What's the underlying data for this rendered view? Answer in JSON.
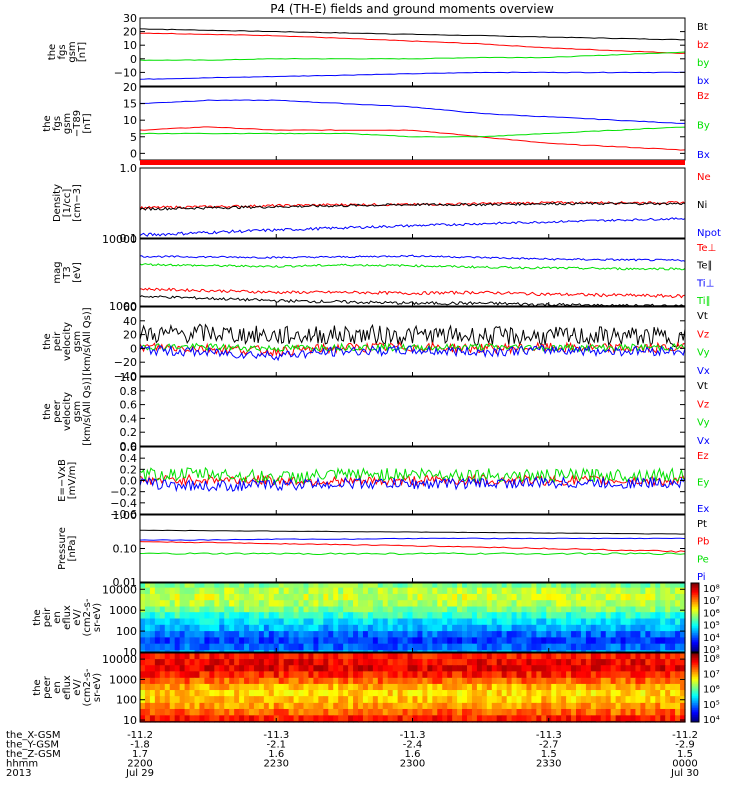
{
  "title": "P4 (TH-E) fields and ground moments overview",
  "colors": {
    "black": "#000000",
    "red": "#ff0000",
    "green": "#00e000",
    "blue": "#0000ff",
    "frame": "#000000"
  },
  "x_axis": {
    "times": [
      "2200",
      "2230",
      "2300",
      "2330",
      "0000"
    ],
    "dates": [
      "Jul 29",
      "",
      "",
      "",
      "Jul 30"
    ],
    "row_labels": [
      "the_X-GSM",
      "the_Y-GSM",
      "the_Z-GSM",
      "hhmm",
      "2013"
    ],
    "ephemeris": {
      "X": [
        "-11.2",
        "-11.3",
        "-11.3",
        "-11.3",
        "-11.2"
      ],
      "Y": [
        "-1.8",
        "-2.1",
        "-2.4",
        "-2.7",
        "-2.9"
      ],
      "Z": [
        "1.7",
        "1.6",
        "1.6",
        "1.5",
        "1.5"
      ]
    }
  },
  "chart_data": [
    {
      "type": "line",
      "panel": "fgs_gsm",
      "ylabel": [
        "the",
        "fgs",
        "gsm",
        "[nT]"
      ],
      "ylim": [
        -20,
        30
      ],
      "yticks": [
        "30",
        "20",
        "10",
        "0",
        "−10"
      ],
      "ytick_values": [
        30,
        20,
        10,
        0,
        -10
      ],
      "x": [
        0,
        15,
        30,
        45,
        60,
        75,
        90,
        105,
        120
      ],
      "series": [
        {
          "name": "Bt",
          "color": "#000000",
          "values": [
            22,
            21,
            20,
            19,
            18,
            17,
            16,
            15,
            14
          ]
        },
        {
          "name": "bz",
          "color": "#ff0000",
          "values": [
            19,
            18,
            17,
            15,
            13,
            11,
            8,
            6,
            4
          ]
        },
        {
          "name": "by",
          "color": "#00e000",
          "values": [
            -1,
            -1,
            0,
            0,
            0,
            1,
            1,
            3,
            5
          ]
        },
        {
          "name": "bx",
          "color": "#0000ff",
          "values": [
            -15,
            -14,
            -13,
            -12,
            -11,
            -10,
            -10,
            -10,
            -10
          ]
        }
      ]
    },
    {
      "type": "line",
      "panel": "fgs_gsm_t89",
      "ylabel": [
        "the",
        "fgs",
        "gsm",
        "−T89",
        "[nT]"
      ],
      "ylim": [
        -2,
        20
      ],
      "yticks": [
        "20",
        "15",
        "10",
        "5",
        "0"
      ],
      "ytick_values": [
        20,
        15,
        10,
        5,
        0
      ],
      "x": [
        0,
        15,
        30,
        45,
        60,
        75,
        90,
        105,
        120
      ],
      "series": [
        {
          "name": "Bz",
          "color": "#ff0000",
          "values": [
            7,
            8,
            7,
            7,
            7,
            5,
            3,
            2,
            1
          ]
        },
        {
          "name": "By",
          "color": "#00e000",
          "values": [
            6,
            6,
            6,
            6,
            5,
            5,
            6,
            7,
            8
          ]
        },
        {
          "name": "Bx",
          "color": "#0000ff",
          "values": [
            15,
            16,
            16,
            15,
            14,
            12,
            11,
            10,
            9
          ]
        }
      ]
    },
    {
      "type": "line",
      "panel": "density",
      "ylabel": [
        "Density",
        "[1/cc]",
        "[cm−3]"
      ],
      "yscale": "log",
      "ylim": [
        0.1,
        1.0
      ],
      "yticks": [
        "1.0",
        "0.1"
      ],
      "ytick_values": [
        1.0,
        0.1
      ],
      "x": [
        0,
        15,
        30,
        45,
        60,
        75,
        90,
        105,
        120
      ],
      "series": [
        {
          "name": "Ne",
          "color": "#ff0000",
          "values": [
            0.27,
            0.28,
            0.29,
            0.3,
            0.3,
            0.31,
            0.32,
            0.32,
            0.32
          ]
        },
        {
          "name": "Ni",
          "color": "#000000",
          "values": [
            0.26,
            0.27,
            0.28,
            0.29,
            0.3,
            0.3,
            0.31,
            0.31,
            0.31
          ]
        },
        {
          "name": "Npot",
          "color": "#0000ff",
          "values": [
            0.11,
            0.12,
            0.13,
            0.14,
            0.15,
            0.16,
            0.17,
            0.18,
            0.19
          ]
        }
      ]
    },
    {
      "type": "line",
      "panel": "temperature",
      "ylabel": [
        "mag",
        "T3",
        "[eV]"
      ],
      "yscale": "log",
      "ylim": [
        1000,
        10000
      ],
      "yticks": [
        "10000",
        "1000"
      ],
      "ytick_values": [
        10000,
        1000
      ],
      "x": [
        0,
        15,
        30,
        45,
        60,
        75,
        90,
        105,
        120
      ],
      "series": [
        {
          "name": "Te⊥",
          "color": "#ff0000",
          "values": [
            1800,
            1700,
            1600,
            1600,
            1550,
            1600,
            1500,
            1450,
            1400
          ]
        },
        {
          "name": "Te∥",
          "color": "#000000",
          "values": [
            1400,
            1300,
            1200,
            1150,
            1100,
            1100,
            1050,
            1000,
            1000
          ]
        },
        {
          "name": "Ti⊥",
          "color": "#0000ff",
          "values": [
            5500,
            5400,
            5300,
            5400,
            5600,
            5300,
            5000,
            4900,
            4800
          ]
        },
        {
          "name": "Ti∥",
          "color": "#00e000",
          "values": [
            4200,
            4000,
            3900,
            4100,
            4000,
            3800,
            3700,
            3600,
            3600
          ]
        }
      ]
    },
    {
      "type": "line",
      "panel": "peir_velocity",
      "ylabel": [
        "the",
        "peir",
        "velocity",
        "gsm",
        "[km/s(All Qs)]"
      ],
      "ylim": [
        -40,
        60
      ],
      "yticks": [
        "60",
        "40",
        "20",
        "0",
        "−20",
        "−40"
      ],
      "ytick_values": [
        60,
        40,
        20,
        0,
        -20,
        -40
      ],
      "x": [
        0,
        15,
        30,
        45,
        60,
        75,
        90,
        105,
        120
      ],
      "series": [
        {
          "name": "Vt",
          "color": "#000000",
          "values": [
            20,
            22,
            18,
            20,
            19,
            18,
            17,
            18,
            16
          ]
        },
        {
          "name": "Vz",
          "color": "#ff0000",
          "values": [
            2,
            0,
            -4,
            1,
            2,
            0,
            1,
            0,
            1
          ]
        },
        {
          "name": "Vy",
          "color": "#00e000",
          "values": [
            3,
            2,
            0,
            2,
            1,
            2,
            1,
            1,
            2
          ]
        },
        {
          "name": "Vx",
          "color": "#0000ff",
          "values": [
            -2,
            -6,
            -10,
            -4,
            -3,
            -5,
            -2,
            -4,
            -3
          ]
        }
      ]
    },
    {
      "type": "line",
      "panel": "peer_velocity",
      "ylabel": [
        "the",
        "peer",
        "velocity",
        "gsm",
        "[km/s(All Qs)]"
      ],
      "ylim": [
        0,
        1
      ],
      "yticks": [
        "1.0",
        "0.8",
        "0.6",
        "0.4",
        "0.2",
        "0.0"
      ],
      "ytick_values": [
        1.0,
        0.8,
        0.6,
        0.4,
        0.2,
        0.0
      ],
      "x": [],
      "series": [
        {
          "name": "Vt",
          "color": "#000000",
          "values": []
        },
        {
          "name": "Vz",
          "color": "#ff0000",
          "values": []
        },
        {
          "name": "Vy",
          "color": "#00e000",
          "values": []
        },
        {
          "name": "Vx",
          "color": "#0000ff",
          "values": []
        }
      ]
    },
    {
      "type": "line",
      "panel": "efield",
      "ylabel": [
        "E=−VxB",
        "[mV/m]"
      ],
      "ylim": [
        -0.6,
        0.6
      ],
      "yticks": [
        "0.6",
        "0.4",
        "0.2",
        "0.0",
        "−0.2",
        "−0.4",
        "−0.6"
      ],
      "ytick_values": [
        0.6,
        0.4,
        0.2,
        0.0,
        -0.2,
        -0.4,
        -0.6
      ],
      "x": [
        0,
        15,
        30,
        45,
        60,
        75,
        90,
        105,
        120
      ],
      "series": [
        {
          "name": "Ez",
          "color": "#ff0000",
          "values": [
            0.0,
            0.02,
            0.0,
            -0.02,
            0.0,
            0.01,
            0.0,
            0.0,
            -0.01
          ]
        },
        {
          "name": "Ey",
          "color": "#00e000",
          "values": [
            0.1,
            0.12,
            0.05,
            0.1,
            0.12,
            0.1,
            0.08,
            0.1,
            0.1
          ]
        },
        {
          "name": "Ex",
          "color": "#0000ff",
          "values": [
            -0.05,
            -0.1,
            -0.08,
            -0.05,
            -0.06,
            -0.05,
            -0.04,
            -0.05,
            -0.03
          ]
        }
      ]
    },
    {
      "type": "line",
      "panel": "pressure",
      "ylabel": [
        "Pressure",
        "[nPa]"
      ],
      "yscale": "log",
      "ylim": [
        0.01,
        1.0
      ],
      "yticks": [
        "1.00",
        "0.10",
        "0.01"
      ],
      "ytick_values": [
        1.0,
        0.1,
        0.01
      ],
      "x": [
        0,
        15,
        30,
        45,
        60,
        75,
        90,
        105,
        120
      ],
      "series": [
        {
          "name": "Pt",
          "color": "#000000",
          "values": [
            0.35,
            0.34,
            0.33,
            0.32,
            0.31,
            0.3,
            0.29,
            0.28,
            0.27
          ]
        },
        {
          "name": "Pb",
          "color": "#ff0000",
          "values": [
            0.16,
            0.15,
            0.14,
            0.13,
            0.12,
            0.11,
            0.1,
            0.09,
            0.08
          ]
        },
        {
          "name": "Pe",
          "color": "#00e000",
          "values": [
            0.07,
            0.07,
            0.07,
            0.07,
            0.07,
            0.07,
            0.07,
            0.07,
            0.07
          ]
        },
        {
          "name": "Pi",
          "color": "#0000ff",
          "values": [
            0.18,
            0.18,
            0.19,
            0.19,
            0.2,
            0.2,
            0.2,
            0.2,
            0.2
          ]
        }
      ]
    },
    {
      "type": "heatmap",
      "panel": "peir_eflux",
      "ylabel": [
        "the",
        "peir",
        "en",
        "eflux",
        "eV/",
        "(cm2-s-",
        "sr-eV)"
      ],
      "yscale": "log",
      "ylim": [
        10,
        20000
      ],
      "yticks": [
        "10000",
        "1000",
        "100",
        "10"
      ],
      "ytick_values": [
        10000,
        1000,
        100,
        10
      ],
      "colorbar_labels": [
        "10⁸",
        "10⁷",
        "10⁶",
        "10⁵",
        "10⁴",
        "10³"
      ],
      "energy_rows": [
        {
          "energy": 20000,
          "level": 0.5
        },
        {
          "energy": 12000,
          "level": 0.55
        },
        {
          "energy": 6000,
          "level": 0.58
        },
        {
          "energy": 3000,
          "level": 0.55
        },
        {
          "energy": 1500,
          "level": 0.5
        },
        {
          "energy": 800,
          "level": 0.42
        },
        {
          "energy": 400,
          "level": 0.35
        },
        {
          "energy": 200,
          "level": 0.3
        },
        {
          "energy": 100,
          "level": 0.22
        },
        {
          "energy": 50,
          "level": 0.18
        },
        {
          "energy": 25,
          "level": 0.22
        },
        {
          "energy": 12,
          "level": 0.3
        }
      ]
    },
    {
      "type": "heatmap",
      "panel": "peer_eflux",
      "ylabel": [
        "the",
        "peer",
        "en",
        "eflux",
        "eV/",
        "(cm2-s-",
        "sr-eV)"
      ],
      "yscale": "log",
      "ylim": [
        8,
        20000
      ],
      "yticks": [
        "10000",
        "1000",
        "100",
        "10"
      ],
      "ytick_values": [
        10000,
        1000,
        100,
        10
      ],
      "colorbar_labels": [
        "10⁸",
        "10⁷",
        "10⁶",
        "10⁵",
        "10⁴"
      ],
      "energy_rows": [
        {
          "energy": 20000,
          "level": 0.85
        },
        {
          "energy": 10000,
          "level": 0.88
        },
        {
          "energy": 5000,
          "level": 0.9
        },
        {
          "energy": 2500,
          "level": 0.85
        },
        {
          "energy": 1200,
          "level": 0.78
        },
        {
          "energy": 600,
          "level": 0.7
        },
        {
          "energy": 300,
          "level": 0.66
        },
        {
          "energy": 150,
          "level": 0.68
        },
        {
          "energy": 70,
          "level": 0.72
        },
        {
          "energy": 35,
          "level": 0.78
        },
        {
          "energy": 17,
          "level": 0.85
        },
        {
          "energy": 9,
          "level": 0.98
        }
      ]
    }
  ]
}
